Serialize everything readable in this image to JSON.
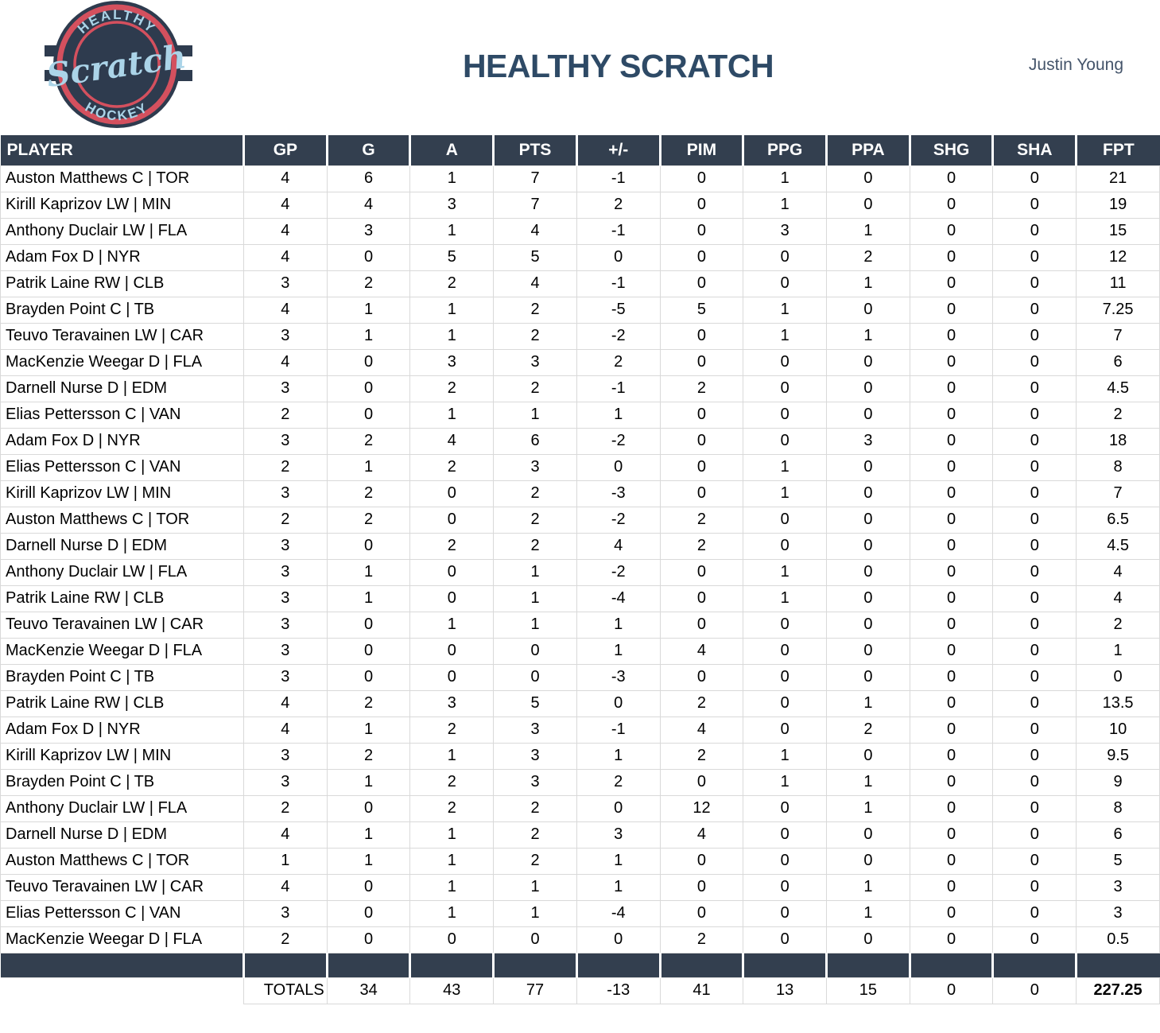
{
  "header": {
    "title": "HEALTHY SCRATCH",
    "author": "Justin Young",
    "logo": {
      "top": "HEALTHY",
      "middle": "Scratch",
      "bottom": "HOCKEY"
    }
  },
  "colors": {
    "table_header_navy": "#333F4F",
    "logo_navy": "#2E3B4E",
    "logo_red": "#D4505E",
    "logo_light_blue": "#ABD4E8",
    "title_navy": "#2E4A66",
    "author_gray_blue": "#44546A",
    "gridline": "#D9D9D9"
  },
  "table": {
    "columns": [
      "PLAYER",
      "GP",
      "G",
      "A",
      "PTS",
      "+/-",
      "PIM",
      "PPG",
      "PPA",
      "SHG",
      "SHA",
      "FPT"
    ],
    "rows": [
      {
        "player": "Auston Matthews C | TOR",
        "stats": [
          "4",
          "6",
          "1",
          "7",
          "-1",
          "0",
          "1",
          "0",
          "0",
          "0",
          "21"
        ]
      },
      {
        "player": "Kirill Kaprizov LW | MIN",
        "stats": [
          "4",
          "4",
          "3",
          "7",
          "2",
          "0",
          "1",
          "0",
          "0",
          "0",
          "19"
        ]
      },
      {
        "player": "Anthony Duclair LW | FLA",
        "stats": [
          "4",
          "3",
          "1",
          "4",
          "-1",
          "0",
          "3",
          "1",
          "0",
          "0",
          "15"
        ]
      },
      {
        "player": "Adam Fox D | NYR",
        "stats": [
          "4",
          "0",
          "5",
          "5",
          "0",
          "0",
          "0",
          "2",
          "0",
          "0",
          "12"
        ]
      },
      {
        "player": "Patrik Laine RW | CLB",
        "stats": [
          "3",
          "2",
          "2",
          "4",
          "-1",
          "0",
          "0",
          "1",
          "0",
          "0",
          "11"
        ]
      },
      {
        "player": "Brayden Point C | TB",
        "stats": [
          "4",
          "1",
          "1",
          "2",
          "-5",
          "5",
          "1",
          "0",
          "0",
          "0",
          "7.25"
        ]
      },
      {
        "player": "Teuvo Teravainen LW | CAR",
        "stats": [
          "3",
          "1",
          "1",
          "2",
          "-2",
          "0",
          "1",
          "1",
          "0",
          "0",
          "7"
        ]
      },
      {
        "player": "MacKenzie Weegar D | FLA",
        "stats": [
          "4",
          "0",
          "3",
          "3",
          "2",
          "0",
          "0",
          "0",
          "0",
          "0",
          "6"
        ]
      },
      {
        "player": "Darnell Nurse D | EDM",
        "stats": [
          "3",
          "0",
          "2",
          "2",
          "-1",
          "2",
          "0",
          "0",
          "0",
          "0",
          "4.5"
        ]
      },
      {
        "player": "Elias Pettersson C | VAN",
        "stats": [
          "2",
          "0",
          "1",
          "1",
          "1",
          "0",
          "0",
          "0",
          "0",
          "0",
          "2"
        ]
      },
      {
        "player": "Adam Fox D | NYR",
        "stats": [
          "3",
          "2",
          "4",
          "6",
          "-2",
          "0",
          "0",
          "3",
          "0",
          "0",
          "18"
        ]
      },
      {
        "player": "Elias Pettersson C | VAN",
        "stats": [
          "2",
          "1",
          "2",
          "3",
          "0",
          "0",
          "1",
          "0",
          "0",
          "0",
          "8"
        ]
      },
      {
        "player": "Kirill Kaprizov LW | MIN",
        "stats": [
          "3",
          "2",
          "0",
          "2",
          "-3",
          "0",
          "1",
          "0",
          "0",
          "0",
          "7"
        ]
      },
      {
        "player": "Auston Matthews C | TOR",
        "stats": [
          "2",
          "2",
          "0",
          "2",
          "-2",
          "2",
          "0",
          "0",
          "0",
          "0",
          "6.5"
        ]
      },
      {
        "player": "Darnell Nurse D | EDM",
        "stats": [
          "3",
          "0",
          "2",
          "2",
          "4",
          "2",
          "0",
          "0",
          "0",
          "0",
          "4.5"
        ]
      },
      {
        "player": "Anthony Duclair LW | FLA",
        "stats": [
          "3",
          "1",
          "0",
          "1",
          "-2",
          "0",
          "1",
          "0",
          "0",
          "0",
          "4"
        ]
      },
      {
        "player": "Patrik Laine RW | CLB",
        "stats": [
          "3",
          "1",
          "0",
          "1",
          "-4",
          "0",
          "1",
          "0",
          "0",
          "0",
          "4"
        ]
      },
      {
        "player": "Teuvo Teravainen LW | CAR",
        "stats": [
          "3",
          "0",
          "1",
          "1",
          "1",
          "0",
          "0",
          "0",
          "0",
          "0",
          "2"
        ]
      },
      {
        "player": "MacKenzie Weegar D | FLA",
        "stats": [
          "3",
          "0",
          "0",
          "0",
          "1",
          "4",
          "0",
          "0",
          "0",
          "0",
          "1"
        ]
      },
      {
        "player": "Brayden Point C | TB",
        "stats": [
          "3",
          "0",
          "0",
          "0",
          "-3",
          "0",
          "0",
          "0",
          "0",
          "0",
          "0"
        ]
      },
      {
        "player": "Patrik Laine RW | CLB",
        "stats": [
          "4",
          "2",
          "3",
          "5",
          "0",
          "2",
          "0",
          "1",
          "0",
          "0",
          "13.5"
        ]
      },
      {
        "player": "Adam Fox D | NYR",
        "stats": [
          "4",
          "1",
          "2",
          "3",
          "-1",
          "4",
          "0",
          "2",
          "0",
          "0",
          "10"
        ]
      },
      {
        "player": "Kirill Kaprizov LW | MIN",
        "stats": [
          "3",
          "2",
          "1",
          "3",
          "1",
          "2",
          "1",
          "0",
          "0",
          "0",
          "9.5"
        ]
      },
      {
        "player": "Brayden Point C | TB",
        "stats": [
          "3",
          "1",
          "2",
          "3",
          "2",
          "0",
          "1",
          "1",
          "0",
          "0",
          "9"
        ]
      },
      {
        "player": "Anthony Duclair LW | FLA",
        "stats": [
          "2",
          "0",
          "2",
          "2",
          "0",
          "12",
          "0",
          "1",
          "0",
          "0",
          "8"
        ]
      },
      {
        "player": "Darnell Nurse D | EDM",
        "stats": [
          "4",
          "1",
          "1",
          "2",
          "3",
          "4",
          "0",
          "0",
          "0",
          "0",
          "6"
        ]
      },
      {
        "player": "Auston Matthews C | TOR",
        "stats": [
          "1",
          "1",
          "1",
          "2",
          "1",
          "0",
          "0",
          "0",
          "0",
          "0",
          "5"
        ]
      },
      {
        "player": "Teuvo Teravainen LW | CAR",
        "stats": [
          "4",
          "0",
          "1",
          "1",
          "1",
          "0",
          "0",
          "1",
          "0",
          "0",
          "3"
        ]
      },
      {
        "player": "Elias Pettersson C | VAN",
        "stats": [
          "3",
          "0",
          "1",
          "1",
          "-4",
          "0",
          "0",
          "1",
          "0",
          "0",
          "3"
        ]
      },
      {
        "player": "MacKenzie Weegar D | FLA",
        "stats": [
          "2",
          "0",
          "0",
          "0",
          "0",
          "2",
          "0",
          "0",
          "0",
          "0",
          "0.5"
        ]
      }
    ],
    "totals": {
      "label": "TOTALS",
      "values": [
        "34",
        "43",
        "77",
        "-13",
        "41",
        "13",
        "15",
        "0",
        "0",
        "227.25"
      ]
    }
  }
}
